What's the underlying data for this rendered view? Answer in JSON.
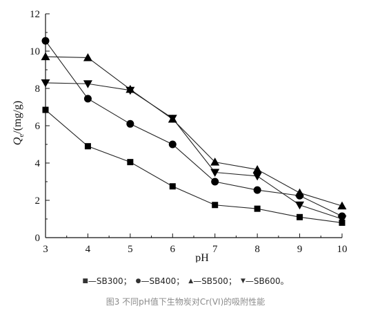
{
  "chart_data": {
    "type": "line",
    "xlabel": "pH",
    "ylabel_main": "Q",
    "ylabel_sub": "e",
    "ylabel_rest": "/(mg/g)",
    "x": [
      3,
      4,
      5,
      6,
      7,
      8,
      9,
      10
    ],
    "xlim": [
      3,
      10
    ],
    "ylim": [
      0,
      12
    ],
    "yticks": [
      0,
      2,
      4,
      6,
      8,
      10,
      12
    ],
    "grid": false,
    "series": [
      {
        "name": "SB300",
        "marker": "square",
        "values": [
          6.85,
          4.9,
          4.05,
          2.75,
          1.75,
          1.55,
          1.1,
          0.8
        ]
      },
      {
        "name": "SB400",
        "marker": "circle",
        "values": [
          10.55,
          7.45,
          6.1,
          5.0,
          3.0,
          2.55,
          2.25,
          1.15
        ]
      },
      {
        "name": "SB500",
        "marker": "triangle",
        "values": [
          9.7,
          9.65,
          7.95,
          6.35,
          4.05,
          3.65,
          2.4,
          1.7
        ]
      },
      {
        "name": "SB600",
        "marker": "triangle-down",
        "values": [
          8.3,
          8.25,
          7.9,
          6.4,
          3.5,
          3.3,
          1.75,
          1.0
        ]
      }
    ]
  },
  "legend_text": {
    "items": [
      {
        "marker": "■",
        "label": "—SB300；"
      },
      {
        "marker": "●",
        "label": "—SB400；"
      },
      {
        "marker": "▲",
        "label": "—SB500；"
      },
      {
        "marker": "▼",
        "label": "—SB600。"
      }
    ]
  },
  "caption": "图3 不同pH值下生物炭对Cr(VI)的吸附性能",
  "colors": {
    "line": "#222222",
    "marker": "#000000",
    "caption": "#8a8a8a"
  }
}
